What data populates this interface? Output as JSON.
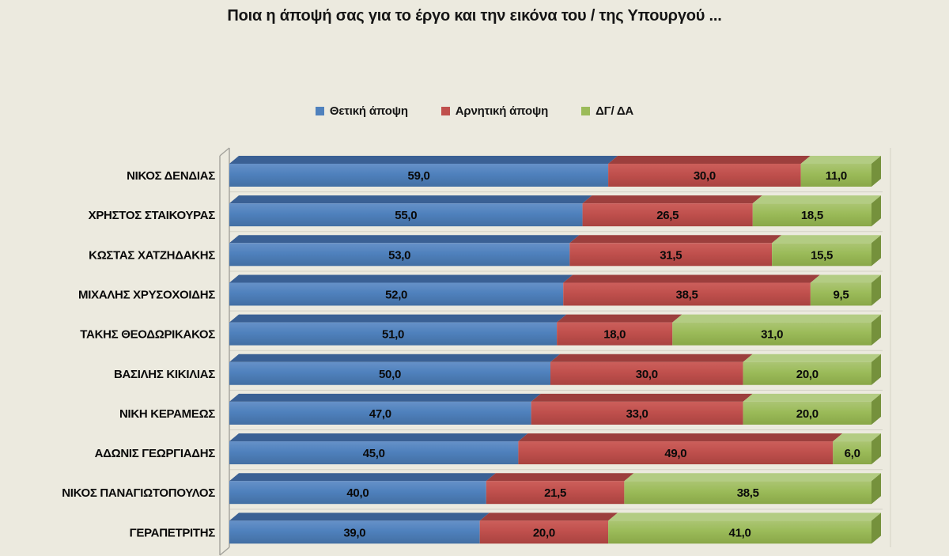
{
  "title": "Ποια η άποψή σας για το έργο και την εικόνα του / της Υπουργού ...",
  "chart_data": {
    "type": "bar",
    "variant": "horizontal-stacked-3d",
    "title": "Ποια η άποψή σας για το έργο και την εικόνα του / της Υπουργού ...",
    "legend_position": "top",
    "grid": "faint-row-separators",
    "xlim": [
      0,
      100
    ],
    "value_format": "one-decimal-comma",
    "background_color": "#ECEADF",
    "categories": [
      "ΝΙΚΟΣ ΔΕΝΔΙΑΣ",
      "ΧΡΗΣΤΟΣ ΣΤΑΙΚΟΥΡΑΣ",
      "ΚΩΣΤΑΣ ΧΑΤΖΗΔΑΚΗΣ",
      "ΜΙΧΑΛΗΣ ΧΡΥΣΟΧΟΙΔΗΣ",
      "ΤΑΚΗΣ ΘΕΟΔΩΡΙΚΑΚΟΣ",
      "ΒΑΣΙΛΗΣ ΚΙΚΙΛΙΑΣ",
      "ΝΙΚΗ ΚΕΡΑΜΕΩΣ",
      "ΑΔΩΝΙΣ ΓΕΩΡΓΙΑΔΗΣ",
      "ΝΙΚΟΣ ΠΑΝΑΓΙΩΤΟΠΟΥΛΟΣ",
      "ΓΕΡΑΠΕΤΡΙΤΗΣ"
    ],
    "series": [
      {
        "name": "Θετική άποψη",
        "color": "#4F81BD",
        "bevel_color": "#3A6094",
        "gradient": [
          "#6691C8",
          "#4F81BD",
          "#436FA3"
        ],
        "values": [
          59.0,
          55.0,
          53.0,
          52.0,
          51.0,
          50.0,
          47.0,
          45.0,
          40.0,
          39.0
        ]
      },
      {
        "name": "Αρνητική άποψη",
        "color": "#C0504D",
        "bevel_color": "#9C3F3D",
        "gradient": [
          "#CC5F5B",
          "#C0504D",
          "#A94340"
        ],
        "values": [
          30.0,
          26.5,
          31.5,
          38.5,
          18.0,
          30.0,
          33.0,
          49.0,
          21.5,
          20.0
        ]
      },
      {
        "name": "ΔΓ/ ΔΑ",
        "color": "#9BBB59",
        "bevel_color": "#B3CC83",
        "gradient": [
          "#ABC573",
          "#9BBB59",
          "#89A748"
        ],
        "end_cap_color": "#75913C",
        "values": [
          11.0,
          18.5,
          15.5,
          9.5,
          31.0,
          20.0,
          20.0,
          6.0,
          38.5,
          41.0
        ]
      }
    ],
    "wall_line_color": "#A3A29B",
    "grid_line_color": "#D3D1C6"
  }
}
